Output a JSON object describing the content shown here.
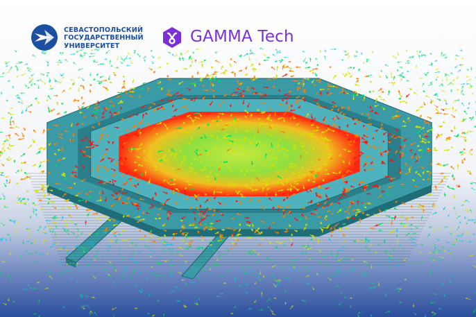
{
  "logos": {
    "university": {
      "lines": [
        "СЕВАСТОПОЛЬСКИЙ",
        "ГОСУДАРСТВЕННЫЙ",
        "УНИВЕРСИТЕТ"
      ],
      "color": "#1d4fa1"
    },
    "company": {
      "name": "GAMMA Tech",
      "color": "#7b2fd6"
    }
  },
  "scene": {
    "background_top": "#ffffff",
    "background_bottom": "#2c4f9c",
    "structure_color": "#3a9aa6",
    "vector_colormap": [
      "#00c8e8",
      "#00e060",
      "#d8e000",
      "#ff8000",
      "#ff1010"
    ]
  }
}
